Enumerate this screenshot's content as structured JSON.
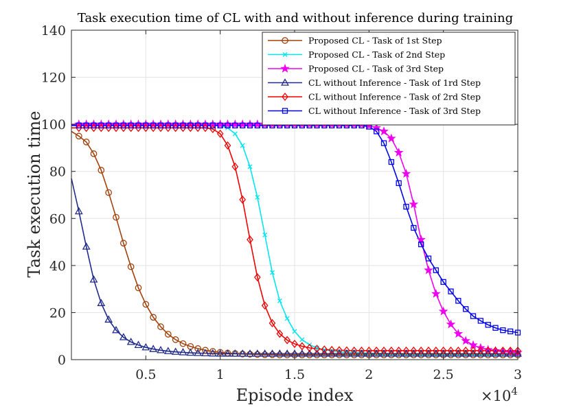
{
  "chart_data": {
    "type": "line",
    "title": "Task execution time of CL with and without inference during training",
    "xlabel": "Episode index",
    "ylabel": "Task execution time",
    "x_multiplier": "×10",
    "x_multiplier_exp": "4",
    "xlim": [
      0,
      3
    ],
    "ylim": [
      0,
      140
    ],
    "xticks": [
      0.5,
      1,
      1.5,
      2,
      2.5,
      3
    ],
    "xtick_labels": [
      "0.5",
      "1",
      "1.5",
      "2",
      "2.5",
      "3"
    ],
    "yticks": [
      0,
      20,
      40,
      60,
      80,
      100,
      120,
      140
    ],
    "ytick_labels": [
      "0",
      "20",
      "40",
      "60",
      "80",
      "100",
      "120",
      "140"
    ],
    "grid": true,
    "legend_position": "top-right",
    "x": [
      0.0,
      0.05,
      0.1,
      0.15,
      0.2,
      0.25,
      0.3,
      0.35,
      0.4,
      0.45,
      0.5,
      0.55,
      0.6,
      0.65,
      0.7,
      0.75,
      0.8,
      0.85,
      0.9,
      0.95,
      1.0,
      1.05,
      1.1,
      1.15,
      1.2,
      1.25,
      1.3,
      1.35,
      1.4,
      1.45,
      1.5,
      1.55,
      1.6,
      1.65,
      1.7,
      1.75,
      1.8,
      1.85,
      1.9,
      1.95,
      2.0,
      2.05,
      2.1,
      2.15,
      2.2,
      2.25,
      2.3,
      2.35,
      2.4,
      2.45,
      2.5,
      2.55,
      2.6,
      2.65,
      2.7,
      2.75,
      2.8,
      2.85,
      2.9,
      2.95,
      3.0
    ],
    "series": [
      {
        "name": "Proposed CL - Task of 1st Step",
        "color": "#a0400a",
        "marker": "circle",
        "values": [
          97,
          95,
          92.5,
          87.5,
          80.5,
          71,
          60.5,
          49.5,
          39.5,
          30.5,
          23.5,
          18,
          14,
          10.8,
          8.5,
          6.8,
          5.6,
          4.7,
          4.0,
          3.5,
          3.1,
          2.8,
          2.6,
          2.4,
          2.3,
          2.2,
          2.1,
          2.1,
          2.0,
          2.0,
          2.0,
          2.0,
          2.0,
          2.0,
          2.0,
          2.0,
          2.0,
          2.0,
          2.0,
          2.0,
          2.0,
          2.0,
          2.0,
          2.0,
          2.0,
          2.0,
          2.0,
          2.0,
          2.0,
          2.0,
          2.0,
          2.0,
          2.0,
          2.0,
          2.0,
          2.0,
          2.0,
          2.0,
          2.0,
          2.0,
          2.0
        ]
      },
      {
        "name": "Proposed CL - Task of 2nd Step",
        "color": "#00e5ee",
        "marker": "x",
        "values": [
          100,
          100,
          100,
          100,
          100,
          100,
          100,
          100,
          100,
          100,
          100,
          100,
          100,
          100,
          100,
          100,
          100,
          100,
          100,
          100,
          99.5,
          98.5,
          96,
          91,
          82,
          69,
          53,
          37,
          25,
          17.5,
          12,
          8.5,
          6.3,
          5.0,
          4.2,
          3.7,
          3.3,
          3.1,
          3.0,
          2.9,
          2.8,
          2.7,
          2.7,
          2.6,
          2.6,
          2.5,
          2.5,
          2.5,
          2.5,
          2.5,
          2.5,
          2.5,
          2.5,
          2.5,
          2.5,
          2.5,
          2.5,
          2.5,
          2.5,
          2.5,
          2.5
        ]
      },
      {
        "name": "Proposed CL - Task of 3rd Step",
        "color": "#ee00ee",
        "marker": "star",
        "values": [
          100,
          100,
          100,
          100,
          100,
          100,
          100,
          100,
          100,
          100,
          100,
          100,
          100,
          100,
          100,
          100,
          100,
          100,
          100,
          100,
          100,
          100,
          100,
          100,
          100,
          100,
          100,
          100,
          100,
          100,
          100,
          100,
          100,
          100,
          100,
          100,
          100,
          100,
          100,
          100,
          99.5,
          98.5,
          97,
          94,
          88,
          79,
          66,
          51,
          38,
          28,
          20.5,
          15,
          11,
          8,
          6.2,
          5.0,
          4.2,
          3.7,
          3.4,
          3.2,
          3.0
        ]
      },
      {
        "name": "CL without Inference - Task of 1rd Step",
        "color": "#1f2a8a",
        "marker": "triangle",
        "values": [
          77,
          63,
          48,
          34,
          24,
          17,
          12.5,
          9.5,
          7.5,
          6.2,
          5.2,
          4.5,
          4.0,
          3.6,
          3.3,
          3.1,
          2.9,
          2.8,
          2.7,
          2.6,
          2.5,
          2.5,
          2.5,
          2.5,
          2.5,
          2.5,
          2.5,
          2.5,
          2.5,
          2.5,
          2.5,
          2.5,
          2.5,
          2.5,
          2.5,
          2.5,
          2.5,
          2.5,
          2.5,
          2.5,
          2.5,
          2.5,
          2.5,
          2.5,
          2.5,
          2.5,
          2.5,
          2.5,
          2.5,
          2.5,
          2.5,
          2.5,
          2.5,
          2.5,
          2.5,
          2.5,
          2.5,
          2.5,
          2.5,
          2.5,
          2.5
        ]
      },
      {
        "name": "CL without Inference - Task of 2rd Step",
        "color": "#ee0000",
        "marker": "diamond",
        "values": [
          98.5,
          98.5,
          98.5,
          98.5,
          98.5,
          98.5,
          98.5,
          98.5,
          98.5,
          98.5,
          98.5,
          98.5,
          98.5,
          98.5,
          98.5,
          98.5,
          98.5,
          98.5,
          98.5,
          98,
          96,
          91,
          82,
          68,
          51,
          35,
          23,
          15.5,
          11,
          8.3,
          6.7,
          5.7,
          5.0,
          4.6,
          4.3,
          4.1,
          4.0,
          3.9,
          3.8,
          3.8,
          3.8,
          3.8,
          3.8,
          3.8,
          3.8,
          3.8,
          3.8,
          3.8,
          3.8,
          3.8,
          3.8,
          3.8,
          3.8,
          3.8,
          3.8,
          3.8,
          3.8,
          3.8,
          3.8,
          3.8,
          3.8
        ]
      },
      {
        "name": "CL without Inference - Task of 3rd Step",
        "color": "#0000ee",
        "marker": "square",
        "values": [
          99.5,
          99.5,
          99.5,
          99.5,
          99.5,
          99.5,
          99.5,
          99.5,
          99.5,
          99.5,
          99.5,
          99.5,
          99.5,
          99.5,
          99.5,
          99.5,
          99.5,
          99.5,
          99.5,
          99.5,
          99.5,
          99.5,
          99.5,
          99.5,
          99.5,
          99.5,
          99.5,
          99.5,
          99.5,
          99.5,
          99.5,
          99.5,
          99.5,
          99.5,
          99.5,
          99.5,
          99.5,
          99.5,
          99.5,
          99.5,
          99,
          97,
          92,
          84,
          75,
          65,
          56,
          49,
          43,
          38,
          33,
          29,
          25,
          21.5,
          18.5,
          16.5,
          14.8,
          13.5,
          12.5,
          12,
          11.5
        ]
      }
    ]
  }
}
